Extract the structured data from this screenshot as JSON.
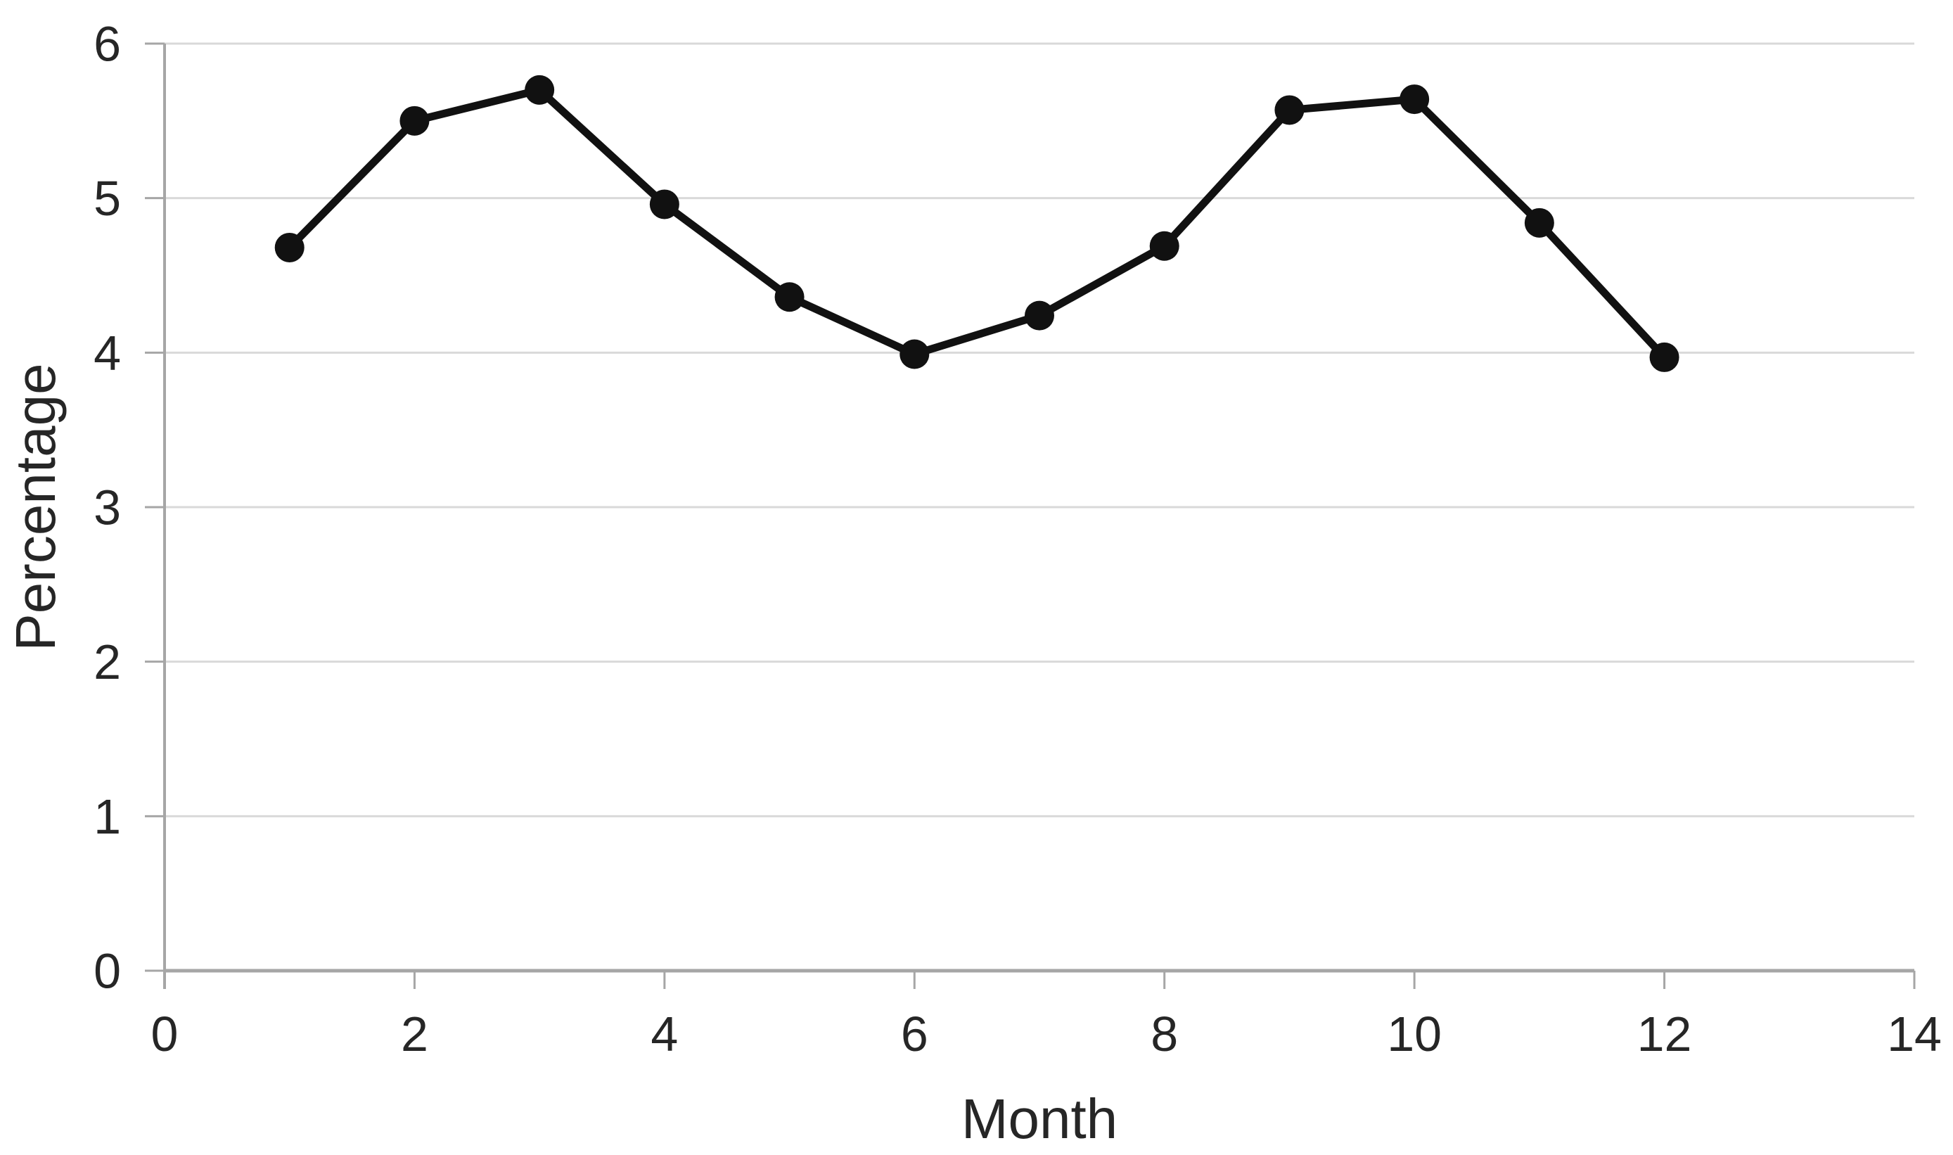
{
  "chart_data": {
    "type": "line",
    "title": "",
    "xlabel": "Month",
    "ylabel": "Percentage",
    "x": [
      1,
      2,
      3,
      4,
      5,
      6,
      7,
      8,
      9,
      10,
      11,
      12
    ],
    "series": [
      {
        "values": [
          4.68,
          5.5,
          5.7,
          4.96,
          4.36,
          3.99,
          4.24,
          4.69,
          5.57,
          5.64,
          4.84,
          3.97
        ]
      }
    ],
    "xlim": [
      0,
      14
    ],
    "ylim": [
      0,
      6
    ],
    "x_ticks": [
      0,
      2,
      4,
      6,
      8,
      10,
      12,
      14
    ],
    "y_ticks": [
      0,
      1,
      2,
      3,
      4,
      5,
      6
    ],
    "grid": "horizontal",
    "legend": "none",
    "colors": {
      "series": "#111111",
      "gridline": "#d9d9d9",
      "axis": "#a6a6a6",
      "tick_label": "#262626"
    }
  }
}
